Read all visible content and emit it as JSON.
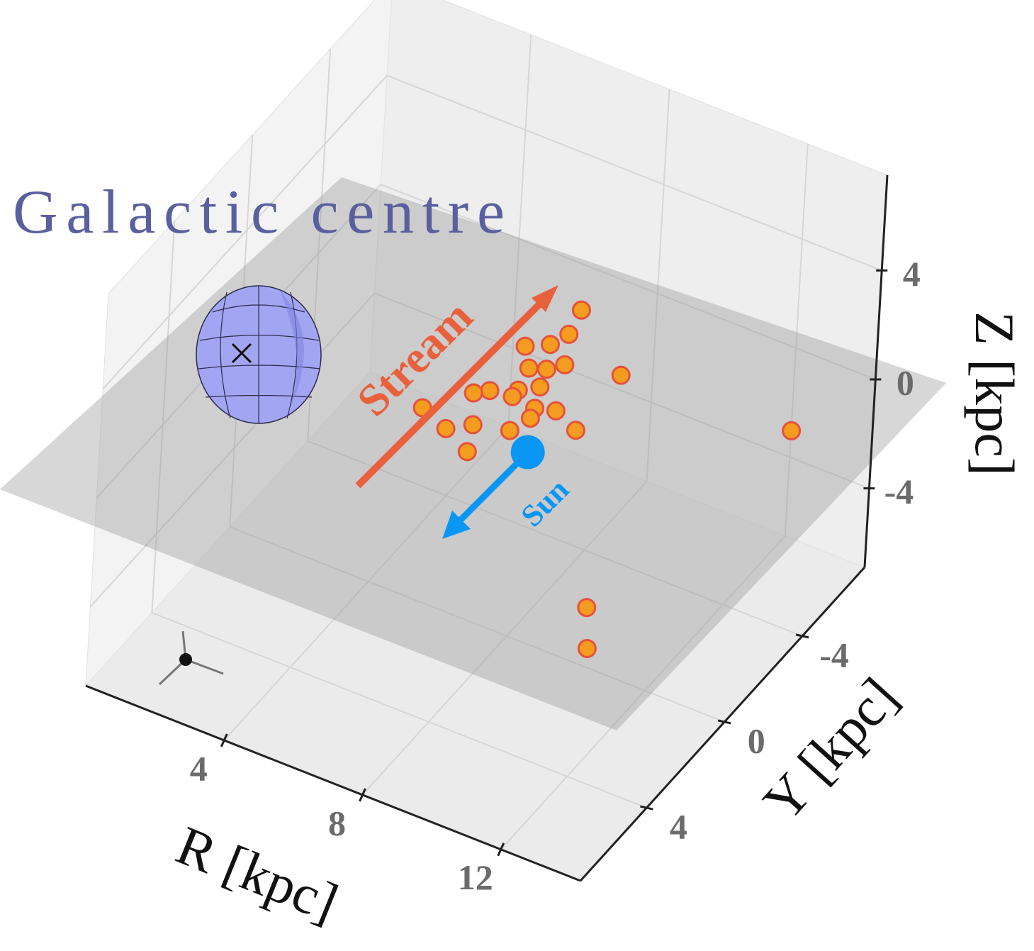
{
  "chart_data": {
    "type": "scatter3d",
    "annotations": {
      "galactic_centre": "Galactic centre",
      "stream": "Stream",
      "sun": "Sun"
    },
    "xlabel": "R [kpc]",
    "ylabel": "Y [kpc]",
    "zlabel": "Z [kpc]",
    "xlim": [
      0,
      14.3
    ],
    "ylim": [
      -7.2,
      7.4
    ],
    "zlim": [
      -6.9,
      7.5
    ],
    "xticks": [
      4,
      8,
      12
    ],
    "yticks": [
      -4,
      0,
      4
    ],
    "zticks": [
      -4,
      0,
      4
    ],
    "grid": true,
    "points": {
      "color": "#f39c1f",
      "edgecolor": "#e8503a",
      "x": [
        6.7,
        6.9,
        6.7,
        6.2,
        6.7,
        7.4,
        7.1,
        8.8,
        7.3,
        6.9,
        6.3,
        6.9,
        6.0,
        5.2,
        7.6,
        8.1,
        7.7,
        6.6,
        6.1,
        7.5,
        8.9,
        7.0,
        13.5,
        9.6,
        10.4
      ],
      "y": [
        -5.6,
        -4.6,
        -4.0,
        -3.6,
        -2.9,
        -3.5,
        -3.1,
        -3.9,
        -2.4,
        -2.0,
        -1.6,
        -1.7,
        -1.3,
        -0.1,
        -1.6,
        -1.8,
        -1.2,
        -0.2,
        0.3,
        -0.5,
        -1.4,
        0.8,
        -4.3,
        -1.2,
        0.2
      ],
      "z": [
        0,
        0,
        0,
        0,
        0,
        0,
        0,
        0,
        0,
        0,
        0,
        0,
        0,
        0,
        0,
        0,
        0,
        0,
        0,
        0,
        0,
        0,
        0,
        -6,
        -6
      ]
    },
    "sun": {
      "color": "#0a96f5",
      "x": 8.3,
      "y": 0,
      "z": 0
    }
  }
}
